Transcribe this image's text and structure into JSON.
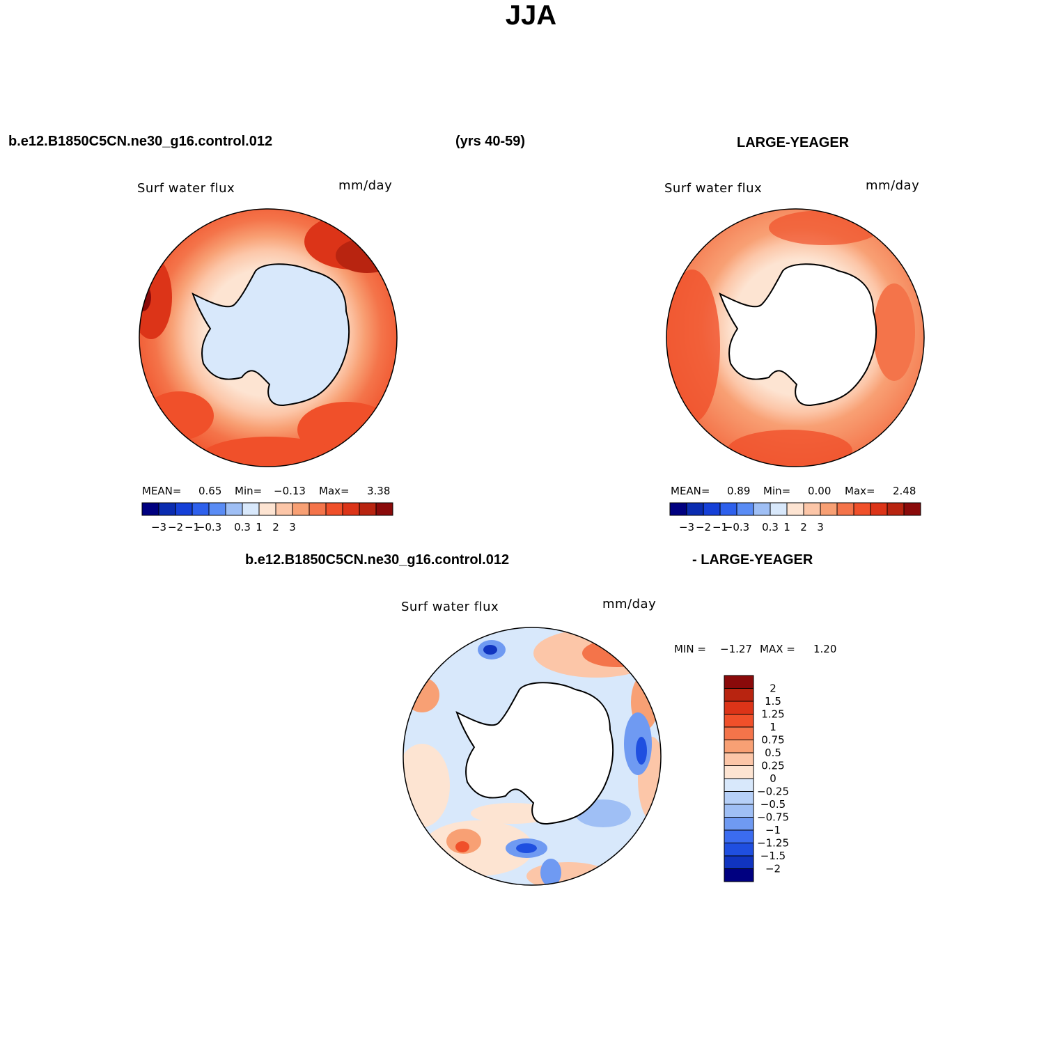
{
  "title": "JJA",
  "header": {
    "left_case": "b.e12.B1850C5CN.ne30_g16.control.012",
    "years": "(yrs 40-59)",
    "right_case": "LARGE-YEAGER"
  },
  "diff_header": {
    "case": "b.e12.B1850C5CN.ne30_g16.control.012",
    "minus_case": "- LARGE-YEAGER"
  },
  "panels": {
    "model": {
      "variable": "Surf water flux",
      "units": "mm/day",
      "mean_label": "MEAN=",
      "mean": "0.65",
      "min_label": "Min=",
      "min": "−0.13",
      "max_label": "Max=",
      "max": "3.38"
    },
    "obs": {
      "variable": "Surf water flux",
      "units": "mm/day",
      "mean_label": "MEAN=",
      "mean": "0.89",
      "min_label": "Min=",
      "min": "0.00",
      "max_label": "Max=",
      "max": "2.48"
    },
    "diff": {
      "variable": "Surf water flux",
      "units": "mm/day",
      "min_label": "MIN =",
      "min": "−1.27",
      "max_label": "MAX =",
      "max": "1.20"
    }
  },
  "chart_data": {
    "type": "heatmap",
    "projection": "south-polar-stereographic",
    "colorbar_main": {
      "colors": [
        "#000080",
        "#0a2cb0",
        "#1540d8",
        "#2e60ec",
        "#5a8cf5",
        "#9fbff5",
        "#d8e8fb",
        "#fde4d2",
        "#fcc6a8",
        "#f8a074",
        "#f4744a",
        "#f0502a",
        "#dc3418",
        "#b82410",
        "#8a0a0a"
      ],
      "tick_labels": [
        "−3",
        "−2",
        "−1",
        "−0.3",
        "0.3",
        "1",
        "2",
        "3"
      ]
    },
    "colorbar_diff": {
      "colors": [
        "#8a0a0a",
        "#b82410",
        "#dc3418",
        "#f0502a",
        "#f4744a",
        "#f8a074",
        "#fcc6a8",
        "#fde4d2",
        "#d8e8fb",
        "#b6d0f8",
        "#9fbff5",
        "#6f9af2",
        "#3b6cf0",
        "#1f4fe0",
        "#1034c0",
        "#000080"
      ],
      "labels": [
        "2",
        "1.5",
        "1.25",
        "1",
        "0.75",
        "0.5",
        "0.25",
        "0",
        "−0.25",
        "−0.5",
        "−0.75",
        "−1",
        "−1.25",
        "−1.5",
        "−2"
      ]
    },
    "colors": {
      "land": "#ffffff",
      "coast": "#000000",
      "model_land_fill": "#d8e8fb"
    }
  }
}
